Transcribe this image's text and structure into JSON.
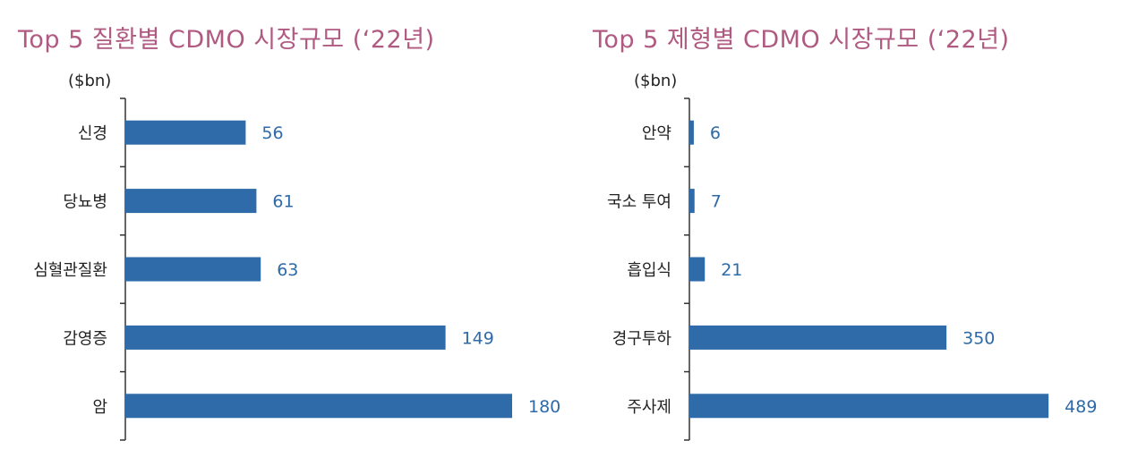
{
  "chart_data": [
    {
      "type": "bar",
      "orientation": "horizontal",
      "title": "Top 5 질환별 CDMO 시장규모 (‘22년)",
      "unit": "($bn)",
      "categories": [
        "신경",
        "당뇨병",
        "심혈관질환",
        "감영증",
        "암"
      ],
      "values": [
        56,
        61,
        63,
        149,
        180
      ],
      "bar_color": "#2e6ba8",
      "label_color": "#2f6aa8",
      "xlim": [
        0,
        200
      ]
    },
    {
      "type": "bar",
      "orientation": "horizontal",
      "title": "Top 5 제형별 CDMO 시장규모 (‘22년)",
      "unit": "($bn)",
      "categories": [
        "안약",
        "국소 투여",
        "흡입식",
        "경구투하",
        "주사제"
      ],
      "values": [
        6,
        7,
        21,
        350,
        489
      ],
      "bar_color": "#2e6ba8",
      "label_color": "#2f6aa8",
      "xlim": [
        0,
        540
      ]
    }
  ]
}
